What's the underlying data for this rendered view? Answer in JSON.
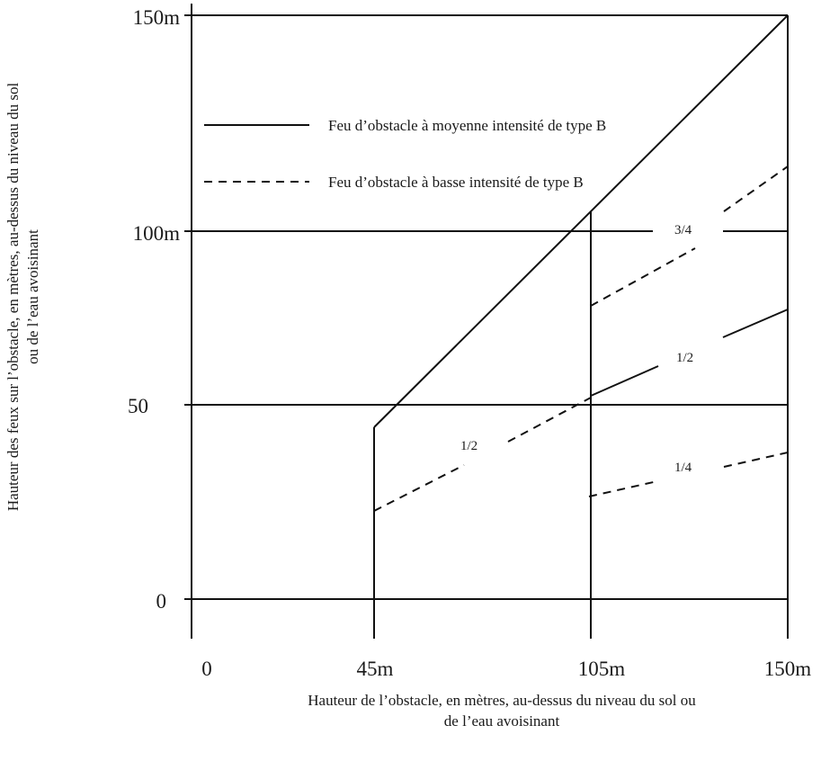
{
  "chart_data": {
    "type": "line",
    "x_ticks": [
      "0",
      "45m",
      "105m",
      "150m"
    ],
    "y_ticks": [
      "0",
      "50",
      "100m",
      "150m"
    ],
    "xlabel": [
      "Hauteur de l’obstacle, en mètres, au-dessus du niveau du sol ou",
      "de l’eau avoisinant"
    ],
    "ylabel": [
      "Hauteur des feux sur l’obstacle, en mètres, au-dessus du niveau du sol",
      "ou de l’eau avoisinant"
    ],
    "legend": [
      {
        "label": "Feu d’obstacle à moyenne intensité de type B",
        "style": "solid"
      },
      {
        "label": "Feu d’obstacle à basse intensité de type B",
        "style": "dashed"
      }
    ],
    "xlim": [
      0,
      150
    ],
    "ylim": [
      0,
      150
    ],
    "series": [
      {
        "name": "Feu d’obstacle à moyenne intensité de type B",
        "style": "solid",
        "points": [
          [
            45,
            0
          ],
          [
            45,
            45
          ],
          [
            150,
            150
          ]
        ]
      },
      {
        "name": "Feu d’obstacle à moyenne intensité de type B",
        "style": "solid",
        "points": [
          [
            105,
            0
          ],
          [
            105,
            105
          ]
        ]
      },
      {
        "name": "Feu d’obstacle à moyenne intensité de type B",
        "style": "solid",
        "points": [
          [
            150,
            0
          ],
          [
            150,
            150
          ]
        ]
      },
      {
        "name": "Feu d’obstacle à moyenne intensité de type B",
        "style": "solid",
        "points": [
          [
            105,
            52.5
          ],
          [
            150,
            75
          ]
        ]
      },
      {
        "name": "Feu d’obstacle à basse intensité de type B",
        "style": "dashed",
        "points": [
          [
            45,
            22.5
          ],
          [
            105,
            52.5
          ]
        ]
      },
      {
        "name": "Feu d’obstacle à basse intensité de type B",
        "style": "dashed",
        "points": [
          [
            105,
            78.75
          ],
          [
            150,
            112.5
          ]
        ]
      },
      {
        "name": "Feu d’obstacle à basse intensité de type B",
        "style": "dashed",
        "points": [
          [
            105,
            26.25
          ],
          [
            150,
            37.5
          ]
        ]
      }
    ],
    "annotations": [
      "1/2",
      "1/2",
      "3/4",
      "1/4"
    ]
  }
}
